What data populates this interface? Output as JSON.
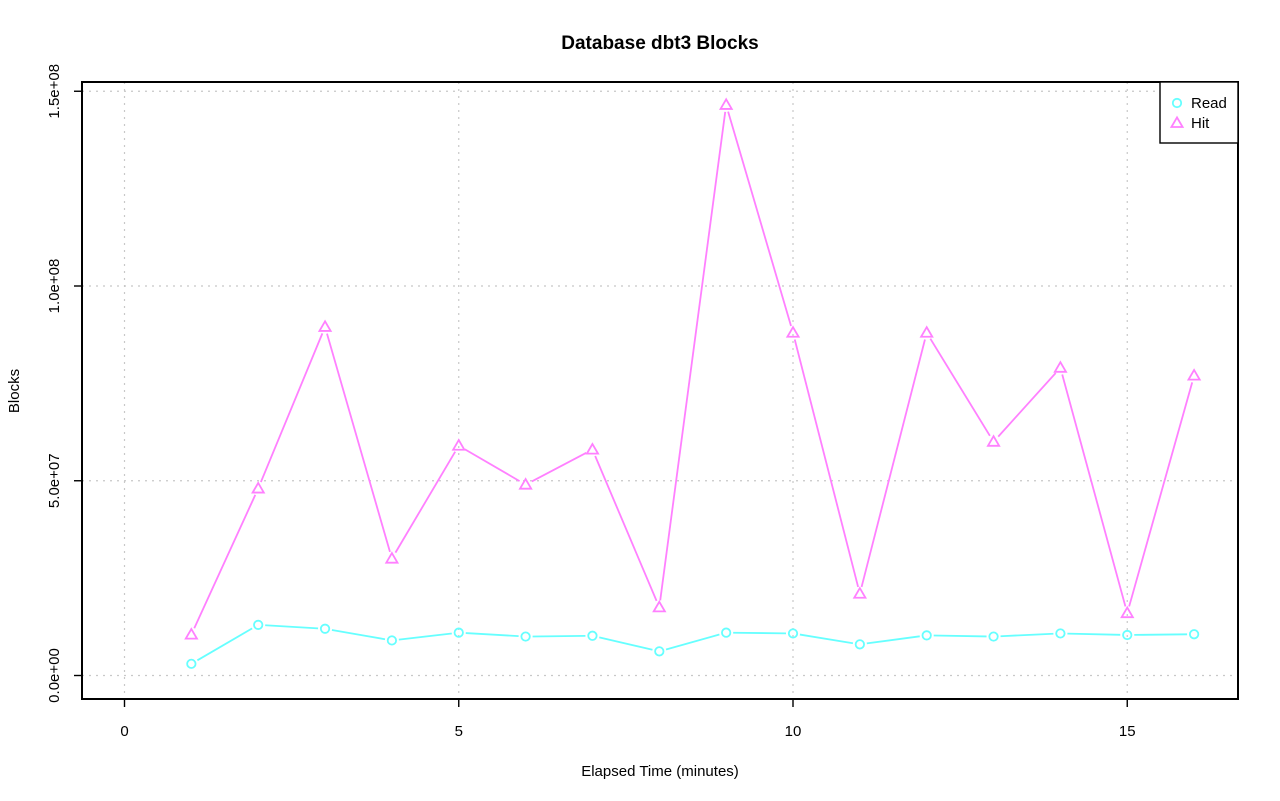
{
  "chart_data": {
    "type": "line",
    "title": "Database dbt3 Blocks",
    "xlabel": "Elapsed Time (minutes)",
    "ylabel": "Blocks",
    "xlim": [
      0,
      16
    ],
    "ylim": [
      0,
      150000000
    ],
    "x_ticks": [
      0,
      5,
      10,
      15
    ],
    "x_tick_labels": [
      "0",
      "5",
      "10",
      "15"
    ],
    "y_ticks": [
      0,
      50000000,
      100000000,
      150000000
    ],
    "y_tick_labels": [
      "0.0e+00",
      "5.0e+07",
      "1.0e+08",
      "1.5e+08"
    ],
    "grid": true,
    "legend_position": "top-right",
    "x": [
      1,
      2,
      3,
      4,
      5,
      6,
      7,
      8,
      9,
      10,
      11,
      12,
      13,
      14,
      15,
      16
    ],
    "series": [
      {
        "name": "Read",
        "color": "#66ffff",
        "marker": "circle",
        "values": [
          3000000,
          13000000,
          12000000,
          9000000,
          11000000,
          10000000,
          10200000,
          6200000,
          11000000,
          10800000,
          8000000,
          10300000,
          10000000,
          10800000,
          10400000,
          10600000
        ]
      },
      {
        "name": "Hit",
        "color": "#ff80ff",
        "marker": "triangle",
        "values": [
          10500000,
          48000000,
          89500000,
          30000000,
          59000000,
          49000000,
          58000000,
          17500000,
          146500000,
          88000000,
          21000000,
          88000000,
          60000000,
          79000000,
          16000000,
          77000000
        ]
      }
    ]
  }
}
